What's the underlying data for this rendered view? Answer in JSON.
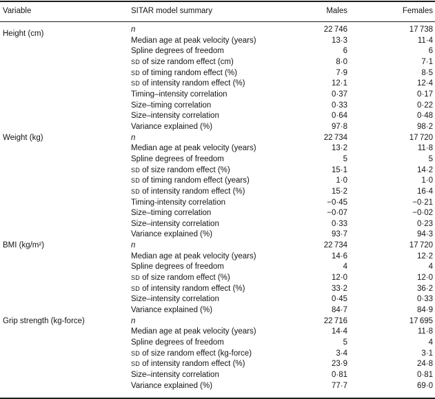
{
  "table": {
    "columns": [
      {
        "label": "Variable"
      },
      {
        "label": "SITAR model summary"
      },
      {
        "label": "Males"
      },
      {
        "label": "Females"
      }
    ],
    "groups": [
      {
        "variable": "Height (cm)",
        "rows": [
          {
            "label": "n",
            "italic": true,
            "males": "22 746",
            "females": "17 738"
          },
          {
            "label": "Median age at peak velocity (years)",
            "males": "13·3",
            "females": "11·4"
          },
          {
            "label": "Spline degrees of freedom",
            "males": "6",
            "females": "6"
          },
          {
            "sc_prefix": "SD",
            "label": " of size random effect (cm)",
            "males": "8·0",
            "females": "7·1"
          },
          {
            "sc_prefix": "SD",
            "label": " of timing random effect (%)",
            "males": "7·9",
            "females": "8·5"
          },
          {
            "sc_prefix": "SD",
            "label": " of intensity random effect (%)",
            "males": "12·1",
            "females": "12·4"
          },
          {
            "label": "Timing–intensity correlation",
            "males": "0·37",
            "females": "0·17"
          },
          {
            "label": "Size–timing correlation",
            "males": "0·33",
            "females": "0·22"
          },
          {
            "label": "Size–intensity correlation",
            "males": "0·64",
            "females": "0·48"
          },
          {
            "label": "Variance explained (%)",
            "males": "97·8",
            "females": "98·2"
          }
        ]
      },
      {
        "variable": "Weight (kg)",
        "rows": [
          {
            "label": "n",
            "italic": true,
            "males": "22 734",
            "females": "17 720"
          },
          {
            "label": "Median age at peak velocity (years)",
            "males": "13·2",
            "females": "11·8"
          },
          {
            "label": "Spline degrees of freedom",
            "males": "5",
            "females": "5"
          },
          {
            "sc_prefix": "SD",
            "label": " of size random effect (%)",
            "males": "15·1",
            "females": "14·2"
          },
          {
            "sc_prefix": "SD",
            "label": " of timing random effect (years)",
            "males": "1·0",
            "females": "1·0"
          },
          {
            "sc_prefix": "SD",
            "label": " of intensity random effect (%)",
            "males": "15·2",
            "females": "16·4"
          },
          {
            "label": "Timing-intensity correlation",
            "males": "−0·45",
            "females": "−0·21"
          },
          {
            "label": "Size–timing correlation",
            "males": "−0·07",
            "females": "−0·02"
          },
          {
            "label": "Size–intensity correlation",
            "males": "0·33",
            "females": "0·23"
          },
          {
            "label": "Variance explained (%)",
            "males": "93·7",
            "females": "94·3"
          }
        ]
      },
      {
        "variable": "BMI (kg/m²)",
        "rows": [
          {
            "label": "n",
            "italic": true,
            "males": "22 734",
            "females": "17 720"
          },
          {
            "label": "Median age at peak velocity (years)",
            "males": "14·6",
            "females": "12·2"
          },
          {
            "label": "Spline degrees of freedom",
            "males": "4",
            "females": "4"
          },
          {
            "sc_prefix": "SD",
            "label": " of size random effect (%)",
            "males": "12·0",
            "females": "12·0"
          },
          {
            "sc_prefix": "SD",
            "label": " of intensity random effect (%)",
            "males": "33·2",
            "females": "36·2"
          },
          {
            "label": "Size–intensity correlation",
            "males": "0·45",
            "females": "0·33"
          },
          {
            "label": "Variance explained (%)",
            "males": "84·7",
            "females": "84·9"
          }
        ]
      },
      {
        "variable": "Grip strength (kg-force)",
        "rows": [
          {
            "label": "n",
            "italic": true,
            "males": "22 716",
            "females": "17 695"
          },
          {
            "label": "Median age at peak velocity (years)",
            "males": "14·4",
            "females": "11·8"
          },
          {
            "label": "Spline degrees of freedom",
            "males": "5",
            "females": "4"
          },
          {
            "sc_prefix": "SD",
            "label": " of size random effect (kg-force)",
            "males": "3·4",
            "females": "3·1"
          },
          {
            "sc_prefix": "SD",
            "label": " of intensity random effect (%)",
            "males": "23·9",
            "females": "24·8"
          },
          {
            "label": "Size–intensity correlation",
            "males": "0·81",
            "females": "0·81"
          },
          {
            "label": "Variance explained (%)",
            "males": "77·7",
            "females": "69·0"
          }
        ]
      }
    ]
  }
}
